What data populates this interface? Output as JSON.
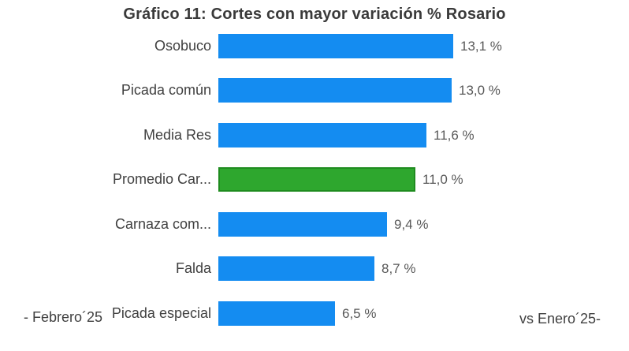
{
  "chart_data": {
    "type": "bar",
    "orientation": "horizontal",
    "title": "Gráfico 11: Cortes con mayor variación % Rosario",
    "categories": [
      "Osobuco",
      "Picada común",
      "Media Res",
      "Promedio Car...",
      "Carnaza com...",
      "Falda",
      "Picada especial"
    ],
    "values": [
      13.1,
      13.0,
      11.6,
      11.0,
      9.4,
      8.7,
      6.5
    ],
    "value_labels": [
      "13,1 %",
      "13,0 %",
      "11,6 %",
      "11,0 %",
      "9,4 %",
      "8,7 %",
      "6,5 %"
    ],
    "bar_colors": [
      "#148cf1",
      "#148cf1",
      "#148cf1",
      "#2ea72e",
      "#148cf1",
      "#148cf1",
      "#148cf1"
    ],
    "highlight_index": 3,
    "highlight_border_color": "#1f8c1f",
    "accent_blue": "#148cf1",
    "accent_green": "#2ea72e",
    "xlim": [
      0,
      14.6
    ],
    "gridlines": false,
    "legend": "none",
    "axis_ticks_visible": false,
    "footer_left": "- Febrero´25",
    "footer_right": "vs Enero´25-"
  }
}
